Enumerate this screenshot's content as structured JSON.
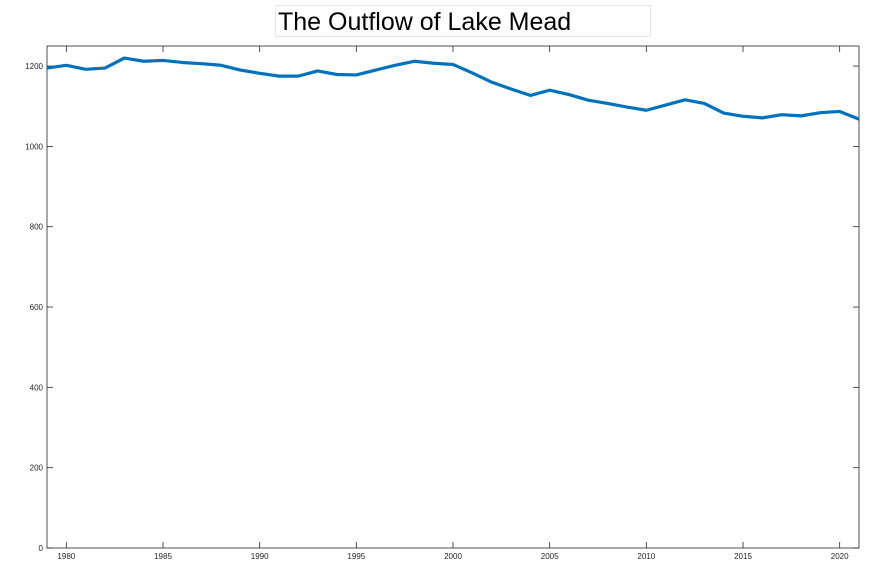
{
  "chart_data": {
    "type": "line",
    "title": "The Outflow of Lake Mead",
    "xlabel": "",
    "ylabel": "",
    "xlim": [
      1979,
      2021
    ],
    "ylim": [
      0,
      1250
    ],
    "grid": false,
    "line_color": "#0072BD",
    "x_ticks": [
      1980,
      1985,
      1990,
      1995,
      2000,
      2005,
      2010,
      2015,
      2020
    ],
    "y_ticks": [
      0,
      200,
      400,
      600,
      800,
      1000,
      1200
    ],
    "series": [
      {
        "x": [
          1979,
          1980,
          1981,
          1982,
          1983,
          1984,
          1985,
          1986,
          1987,
          1988,
          1989,
          1990,
          1991,
          1992,
          1993,
          1994,
          1995,
          1996,
          1997,
          1998,
          1999,
          2000,
          2001,
          2002,
          2003,
          2004,
          2005,
          2006,
          2007,
          2008,
          2009,
          2010,
          2011,
          2012,
          2013,
          2014,
          2015,
          2016,
          2017,
          2018,
          2019,
          2020,
          2021
        ],
        "values": [
          1195,
          1202,
          1192,
          1195,
          1220,
          1212,
          1214,
          1209,
          1206,
          1202,
          1190,
          1182,
          1175,
          1175,
          1188,
          1179,
          1178,
          1190,
          1202,
          1212,
          1207,
          1204,
          1183,
          1160,
          1143,
          1127,
          1140,
          1129,
          1115,
          1107,
          1098,
          1090,
          1103,
          1116,
          1107,
          1083,
          1075,
          1071,
          1079,
          1076,
          1084,
          1087,
          1068
        ]
      }
    ]
  }
}
